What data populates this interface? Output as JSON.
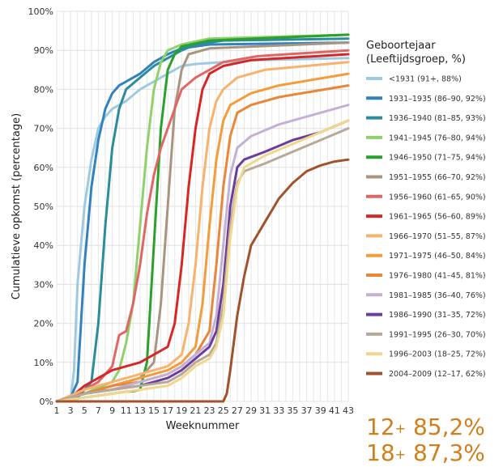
{
  "chart_data": {
    "type": "line",
    "xlabel": "Weeknummer",
    "ylabel": "Cumulatieve opkomst (percentage)",
    "x_ticks": [
      1,
      3,
      5,
      7,
      9,
      11,
      13,
      15,
      17,
      19,
      21,
      23,
      25,
      27,
      29,
      31,
      33,
      35,
      37,
      39,
      41,
      43
    ],
    "xlim": [
      1,
      43
    ],
    "y_ticks": [
      "0%",
      "10%",
      "20%",
      "30%",
      "40%",
      "50%",
      "60%",
      "70%",
      "80%",
      "90%",
      "100%"
    ],
    "ylim": [
      0,
      100
    ],
    "grid": true,
    "legend_position": "right",
    "legend_title": [
      "Geboortejaar",
      "(Leeftijdsgroep, %)"
    ],
    "series": [
      {
        "name": "<1931 (91+, 88%)",
        "color": "#9ecae1",
        "points": [
          [
            1,
            0
          ],
          [
            3,
            0
          ],
          [
            3.5,
            8
          ],
          [
            4,
            30
          ],
          [
            5,
            50
          ],
          [
            6,
            62
          ],
          [
            7,
            70
          ],
          [
            8,
            73
          ],
          [
            9,
            75
          ],
          [
            10,
            76
          ],
          [
            11,
            77
          ],
          [
            13,
            80
          ],
          [
            15,
            82
          ],
          [
            17,
            84
          ],
          [
            19,
            86
          ],
          [
            21,
            86.5
          ],
          [
            25,
            87
          ],
          [
            30,
            87.5
          ],
          [
            43,
            88
          ]
        ]
      },
      {
        "name": "1931–1935 (86–90, 92%)",
        "color": "#3182bd",
        "points": [
          [
            1,
            0
          ],
          [
            3,
            1
          ],
          [
            4,
            5
          ],
          [
            5,
            35
          ],
          [
            6,
            55
          ],
          [
            7,
            67
          ],
          [
            8,
            75
          ],
          [
            9,
            79
          ],
          [
            10,
            81
          ],
          [
            11,
            82
          ],
          [
            13,
            84
          ],
          [
            15,
            87
          ],
          [
            17,
            89
          ],
          [
            19,
            90.5
          ],
          [
            23,
            91.5
          ],
          [
            43,
            92
          ]
        ]
      },
      {
        "name": "1936–1940 (81–85, 93%)",
        "color": "#2b8c9e",
        "points": [
          [
            1,
            0
          ],
          [
            4,
            1
          ],
          [
            5,
            3
          ],
          [
            6,
            5
          ],
          [
            7,
            20
          ],
          [
            8,
            45
          ],
          [
            9,
            65
          ],
          [
            10,
            75
          ],
          [
            11,
            80
          ],
          [
            13,
            83
          ],
          [
            15,
            86
          ],
          [
            17,
            88
          ],
          [
            19,
            90
          ],
          [
            21,
            91.5
          ],
          [
            25,
            92.5
          ],
          [
            43,
            93
          ]
        ]
      },
      {
        "name": "1941–1945 (76–80, 94%)",
        "color": "#8fd16b",
        "points": [
          [
            1,
            0
          ],
          [
            5,
            2
          ],
          [
            9,
            5
          ],
          [
            10,
            8
          ],
          [
            11,
            15
          ],
          [
            12,
            25
          ],
          [
            13,
            45
          ],
          [
            14,
            65
          ],
          [
            15,
            80
          ],
          [
            16,
            87
          ],
          [
            17,
            90
          ],
          [
            19,
            91.5
          ],
          [
            23,
            93
          ],
          [
            43,
            94
          ]
        ]
      },
      {
        "name": "1946–1950 (71–75, 94%)",
        "color": "#2ca02c",
        "points": [
          [
            1,
            0
          ],
          [
            5,
            1
          ],
          [
            9,
            2
          ],
          [
            11,
            2.5
          ],
          [
            12,
            2.6
          ],
          [
            13,
            3
          ],
          [
            14,
            10
          ],
          [
            15,
            40
          ],
          [
            16,
            70
          ],
          [
            17,
            85
          ],
          [
            18,
            89
          ],
          [
            19,
            91
          ],
          [
            23,
            92.5
          ],
          [
            43,
            94
          ]
        ]
      },
      {
        "name": "1951–1955 (66–70, 92%)",
        "color": "#a8957f",
        "points": [
          [
            1,
            0
          ],
          [
            5,
            2
          ],
          [
            9,
            4
          ],
          [
            13,
            6
          ],
          [
            15,
            10
          ],
          [
            16,
            25
          ],
          [
            17,
            50
          ],
          [
            18,
            75
          ],
          [
            19,
            85
          ],
          [
            20,
            89
          ],
          [
            23,
            90.5
          ],
          [
            43,
            92
          ]
        ]
      },
      {
        "name": "1956–1960 (61–65, 90%)",
        "color": "#e06666",
        "points": [
          [
            1,
            0
          ],
          [
            3,
            1
          ],
          [
            5,
            3
          ],
          [
            7,
            5
          ],
          [
            9,
            9
          ],
          [
            10,
            17
          ],
          [
            11,
            18
          ],
          [
            12,
            25
          ],
          [
            13,
            35
          ],
          [
            14,
            48
          ],
          [
            15,
            58
          ],
          [
            16,
            65
          ],
          [
            17,
            70
          ],
          [
            18,
            75
          ],
          [
            19,
            80
          ],
          [
            21,
            83
          ],
          [
            23,
            85
          ],
          [
            25,
            87
          ],
          [
            30,
            88.5
          ],
          [
            43,
            90
          ]
        ]
      },
      {
        "name": "1961–1965 (56–60, 89%)",
        "color": "#d62728",
        "points": [
          [
            1,
            0
          ],
          [
            3,
            1
          ],
          [
            5,
            4
          ],
          [
            7,
            6
          ],
          [
            9,
            8
          ],
          [
            13,
            10
          ],
          [
            17,
            14
          ],
          [
            18,
            20
          ],
          [
            19,
            35
          ],
          [
            20,
            55
          ],
          [
            21,
            70
          ],
          [
            22,
            80
          ],
          [
            23,
            84
          ],
          [
            25,
            86
          ],
          [
            29,
            87.5
          ],
          [
            43,
            89
          ]
        ]
      },
      {
        "name": "1966–1970 (51–55, 87%)",
        "color": "#f7b26b",
        "points": [
          [
            1,
            0
          ],
          [
            5,
            3
          ],
          [
            9,
            5
          ],
          [
            13,
            7
          ],
          [
            17,
            9
          ],
          [
            19,
            12
          ],
          [
            20,
            20
          ],
          [
            21,
            35
          ],
          [
            22,
            55
          ],
          [
            23,
            70
          ],
          [
            24,
            77
          ],
          [
            25,
            80
          ],
          [
            27,
            83
          ],
          [
            31,
            85
          ],
          [
            43,
            87
          ]
        ]
      },
      {
        "name": "1971–1975 (46–50, 84%)",
        "color": "#f39c3a",
        "points": [
          [
            1,
            0
          ],
          [
            5,
            2
          ],
          [
            9,
            4
          ],
          [
            13,
            6
          ],
          [
            17,
            8
          ],
          [
            19,
            10
          ],
          [
            21,
            14
          ],
          [
            22,
            25
          ],
          [
            23,
            45
          ],
          [
            24,
            62
          ],
          [
            25,
            72
          ],
          [
            26,
            76
          ],
          [
            29,
            79
          ],
          [
            33,
            81
          ],
          [
            43,
            84
          ]
        ]
      },
      {
        "name": "1976–1980 (41–45, 81%)",
        "color": "#e8873a",
        "points": [
          [
            1,
            0
          ],
          [
            5,
            2
          ],
          [
            9,
            4
          ],
          [
            13,
            5
          ],
          [
            17,
            7
          ],
          [
            19,
            9
          ],
          [
            21,
            12
          ],
          [
            23,
            18
          ],
          [
            24,
            35
          ],
          [
            25,
            55
          ],
          [
            26,
            68
          ],
          [
            27,
            74
          ],
          [
            29,
            76
          ],
          [
            33,
            78
          ],
          [
            43,
            81
          ]
        ]
      },
      {
        "name": "1981–1985 (36–40, 76%)",
        "color": "#c5b0d5",
        "points": [
          [
            1,
            0
          ],
          [
            5,
            2
          ],
          [
            9,
            3
          ],
          [
            13,
            5
          ],
          [
            17,
            7
          ],
          [
            19,
            9
          ],
          [
            21,
            12
          ],
          [
            23,
            15
          ],
          [
            24,
            22
          ],
          [
            25,
            40
          ],
          [
            26,
            58
          ],
          [
            27,
            65
          ],
          [
            29,
            68
          ],
          [
            33,
            71
          ],
          [
            37,
            73
          ],
          [
            43,
            76
          ]
        ]
      },
      {
        "name": "1986–1990 (31–35, 72%)",
        "color": "#6a3d9a",
        "points": [
          [
            1,
            0
          ],
          [
            5,
            2
          ],
          [
            9,
            3
          ],
          [
            13,
            4
          ],
          [
            17,
            6
          ],
          [
            19,
            8
          ],
          [
            21,
            11
          ],
          [
            23,
            14
          ],
          [
            24,
            18
          ],
          [
            25,
            30
          ],
          [
            26,
            50
          ],
          [
            27,
            60
          ],
          [
            28,
            62
          ],
          [
            31,
            64
          ],
          [
            35,
            67
          ],
          [
            39,
            69
          ],
          [
            43,
            72
          ]
        ]
      },
      {
        "name": "1991–1995 (26–30, 70%)",
        "color": "#b8a89a",
        "points": [
          [
            1,
            0
          ],
          [
            5,
            2
          ],
          [
            9,
            3
          ],
          [
            13,
            4
          ],
          [
            17,
            5
          ],
          [
            19,
            7
          ],
          [
            21,
            10
          ],
          [
            23,
            12
          ],
          [
            24,
            15
          ],
          [
            25,
            25
          ],
          [
            26,
            45
          ],
          [
            27,
            56
          ],
          [
            28,
            59
          ],
          [
            31,
            61
          ],
          [
            35,
            64
          ],
          [
            39,
            67
          ],
          [
            43,
            70
          ]
        ]
      },
      {
        "name": "1996–2003 (18–25, 72%)",
        "color": "#f0d78c",
        "points": [
          [
            1,
            0
          ],
          [
            5,
            1
          ],
          [
            9,
            2
          ],
          [
            13,
            3
          ],
          [
            17,
            4
          ],
          [
            19,
            6
          ],
          [
            21,
            9
          ],
          [
            23,
            11
          ],
          [
            24,
            14
          ],
          [
            25,
            22
          ],
          [
            26,
            42
          ],
          [
            27,
            55
          ],
          [
            28,
            60
          ],
          [
            31,
            63
          ],
          [
            35,
            66
          ],
          [
            39,
            69
          ],
          [
            43,
            72
          ]
        ]
      },
      {
        "name": "2004–2009 (12–17, 62%)",
        "color": "#a0522d",
        "points": [
          [
            1,
            0
          ],
          [
            25,
            0
          ],
          [
            25.5,
            2
          ],
          [
            26,
            8
          ],
          [
            27,
            22
          ],
          [
            28,
            32
          ],
          [
            29,
            40
          ],
          [
            31,
            46
          ],
          [
            33,
            52
          ],
          [
            35,
            56
          ],
          [
            37,
            59
          ],
          [
            39,
            60.5
          ],
          [
            41,
            61.5
          ],
          [
            43,
            62
          ]
        ]
      }
    ]
  },
  "vaccination_rates": [
    {
      "age": "12",
      "sup": "+",
      "value": "85,2%"
    },
    {
      "age": "18",
      "sup": "+",
      "value": "87,3%"
    }
  ]
}
